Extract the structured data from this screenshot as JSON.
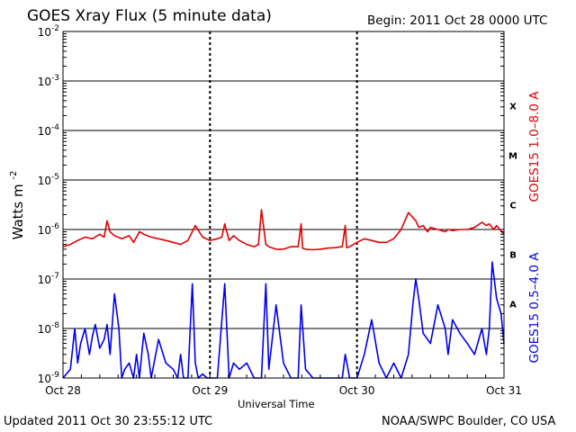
{
  "header": {
    "title": "GOES Xray Flux (5 minute data)",
    "begin": "Begin:  2011 Oct 28 0000 UTC"
  },
  "footer": {
    "updated": "Updated 2011 Oct 30 23:55:12 UTC",
    "credit": "NOAA/SWPC Boulder, CO USA"
  },
  "colors": {
    "long_channel": "#e00000",
    "short_channel": "#0000ee",
    "axis": "#000000"
  },
  "chart_data": {
    "type": "line",
    "title": "GOES Xray Flux (5 minute data)",
    "xlabel": "Universal Time",
    "ylabel": "Watts m",
    "ylabel_superscript": "-2",
    "y_scale": "log",
    "ylim": [
      1e-09,
      0.01
    ],
    "xlim_days": [
      0,
      3
    ],
    "grid": true,
    "x_ticks": [
      "Oct 28",
      "Oct 29",
      "Oct 30",
      "Oct 31"
    ],
    "y_ticks": [
      {
        "base": "10",
        "exp": "-2"
      },
      {
        "base": "10",
        "exp": "-3"
      },
      {
        "base": "10",
        "exp": "-4"
      },
      {
        "base": "10",
        "exp": "-5"
      },
      {
        "base": "10",
        "exp": "-6"
      },
      {
        "base": "10",
        "exp": "-7"
      },
      {
        "base": "10",
        "exp": "-8"
      },
      {
        "base": "10",
        "exp": "-9"
      }
    ],
    "flare_classes": [
      {
        "label": "X",
        "level": 0.0001
      },
      {
        "label": "M",
        "level": 1e-05
      },
      {
        "label": "C",
        "level": 1e-06
      },
      {
        "label": "B",
        "level": 1e-07
      },
      {
        "label": "A",
        "level": 1e-08
      }
    ],
    "series": [
      {
        "name": "GOES15 1.0–8.0 A",
        "color": "#e00000",
        "x": [
          0.0,
          0.05,
          0.1,
          0.15,
          0.2,
          0.25,
          0.28,
          0.3,
          0.32,
          0.35,
          0.4,
          0.45,
          0.48,
          0.5,
          0.52,
          0.55,
          0.6,
          0.65,
          0.7,
          0.75,
          0.8,
          0.85,
          0.9,
          0.95,
          1.0,
          1.05,
          1.08,
          1.1,
          1.13,
          1.16,
          1.2,
          1.25,
          1.3,
          1.33,
          1.35,
          1.38,
          1.4,
          1.45,
          1.5,
          1.55,
          1.6,
          1.62,
          1.63,
          1.65,
          1.7,
          1.75,
          1.8,
          1.85,
          1.9,
          1.92,
          1.93,
          1.95,
          2.0,
          2.05,
          2.1,
          2.15,
          2.2,
          2.25,
          2.3,
          2.35,
          2.4,
          2.42,
          2.45,
          2.48,
          2.5,
          2.55,
          2.6,
          2.62,
          2.65,
          2.7,
          2.75,
          2.8,
          2.85,
          2.88,
          2.9,
          2.93,
          2.95,
          3.0
        ],
        "y": [
          4.5e-07,
          5e-07,
          6e-07,
          7e-07,
          6.5e-07,
          8e-07,
          7e-07,
          1.5e-06,
          9e-07,
          7.5e-07,
          6.5e-07,
          7.5e-07,
          5.5e-07,
          7e-07,
          9e-07,
          8e-07,
          7e-07,
          6.5e-07,
          6e-07,
          5.5e-07,
          5e-07,
          6e-07,
          1.2e-06,
          7e-07,
          6e-07,
          6.5e-07,
          7e-07,
          1.3e-06,
          6e-07,
          7.5e-07,
          6e-07,
          5e-07,
          4.5e-07,
          5e-07,
          2.5e-06,
          5e-07,
          4.5e-07,
          4e-07,
          4e-07,
          4.5e-07,
          4.5e-07,
          1.3e-06,
          4.2e-07,
          4e-07,
          3.9e-07,
          4e-07,
          4.2e-07,
          4.3e-07,
          4.5e-07,
          1.2e-06,
          4.3e-07,
          4.5e-07,
          5.5e-07,
          6.5e-07,
          6e-07,
          5.5e-07,
          5.5e-07,
          6.5e-07,
          1e-06,
          2.2e-06,
          1.5e-06,
          1.1e-06,
          1.2e-06,
          9e-07,
          1.1e-06,
          1e-06,
          9e-07,
          1e-06,
          9.5e-07,
          1e-06,
          1e-06,
          1.1e-06,
          1.4e-06,
          1.2e-06,
          1.3e-06,
          1e-06,
          1.2e-06,
          8e-07
        ]
      },
      {
        "name": "GOES15 0.5–4.0 A",
        "color": "#0000ee",
        "x": [
          0.0,
          0.05,
          0.08,
          0.1,
          0.12,
          0.15,
          0.18,
          0.2,
          0.22,
          0.25,
          0.28,
          0.3,
          0.32,
          0.35,
          0.38,
          0.4,
          0.42,
          0.45,
          0.48,
          0.5,
          0.52,
          0.55,
          0.58,
          0.6,
          0.65,
          0.7,
          0.75,
          0.78,
          0.8,
          0.82,
          0.85,
          0.88,
          0.9,
          0.92,
          0.95,
          0.98,
          1.0,
          1.05,
          1.1,
          1.13,
          1.16,
          1.2,
          1.25,
          1.3,
          1.35,
          1.38,
          1.4,
          1.45,
          1.5,
          1.55,
          1.6,
          1.62,
          1.65,
          1.7,
          1.75,
          1.8,
          1.85,
          1.9,
          1.92,
          1.95,
          2.0,
          2.05,
          2.1,
          2.15,
          2.2,
          2.25,
          2.3,
          2.35,
          2.38,
          2.4,
          2.42,
          2.45,
          2.5,
          2.55,
          2.6,
          2.62,
          2.65,
          2.7,
          2.75,
          2.8,
          2.85,
          2.88,
          2.9,
          2.92,
          2.95,
          2.98,
          3.0
        ],
        "y": [
          1e-09,
          1.5e-09,
          1e-08,
          2e-09,
          5e-09,
          1e-08,
          3e-09,
          7e-09,
          1.2e-08,
          4e-09,
          6e-09,
          1.2e-08,
          3e-09,
          5e-08,
          1e-08,
          1e-09,
          1.5e-09,
          2e-09,
          1e-09,
          3e-09,
          1e-09,
          8e-09,
          3e-09,
          1e-09,
          6e-09,
          2e-09,
          1.5e-09,
          1e-09,
          3e-09,
          1e-09,
          1e-09,
          8e-08,
          2e-09,
          1e-09,
          1.2e-09,
          1e-09,
          1e-09,
          1e-09,
          8e-08,
          1e-09,
          2e-09,
          1.5e-09,
          2e-09,
          1e-09,
          1e-09,
          8e-08,
          1.5e-09,
          3e-08,
          2e-09,
          1e-09,
          1e-09,
          3e-08,
          1.5e-09,
          1e-09,
          1e-09,
          1e-09,
          1e-09,
          1e-09,
          3e-09,
          1e-09,
          1e-09,
          3e-09,
          1.5e-08,
          2e-09,
          1e-09,
          2e-09,
          1e-09,
          3e-09,
          3e-08,
          1e-07,
          4e-08,
          8e-09,
          5e-09,
          3e-08,
          1e-08,
          3e-09,
          1.5e-08,
          8e-09,
          5e-09,
          3e-09,
          1e-08,
          3e-09,
          1e-08,
          2.2e-07,
          4e-08,
          2e-08,
          5e-09
        ]
      }
    ]
  }
}
